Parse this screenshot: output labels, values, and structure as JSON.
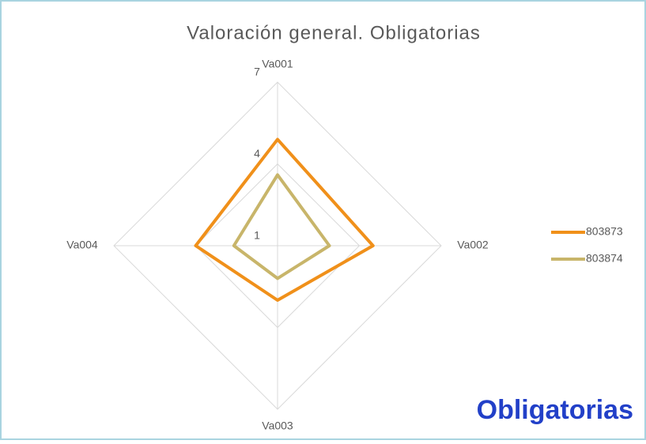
{
  "chart_data": {
    "type": "radar",
    "title": "Valoración general. Obligatorias",
    "categories": [
      "Va001",
      "Va002",
      "Va003",
      "Va004"
    ],
    "series": [
      {
        "name": "803873",
        "color": "#f0901a",
        "values": [
          4.9,
          4.5,
          3,
          4
        ]
      },
      {
        "name": "803874",
        "color": "#c8b56a",
        "values": [
          3.6,
          2.9,
          2.2,
          2.6
        ]
      }
    ],
    "ylim": [
      1,
      7
    ],
    "yticks": [
      1,
      4,
      7
    ],
    "grid": true,
    "legend": "right",
    "annotation": "Obligatorias"
  }
}
